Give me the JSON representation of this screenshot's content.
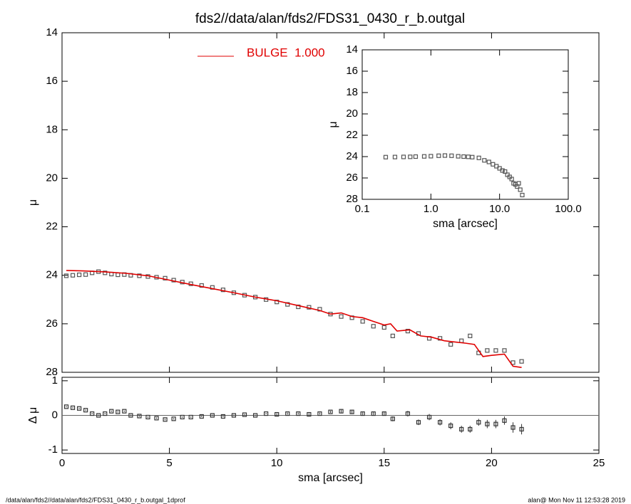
{
  "chart_data": [
    {
      "type": "scatter",
      "title": "fds2//data/alan/fds2/FDS31_0430_r_b.outgal",
      "ylabel": "μ",
      "xlim": [
        0,
        25
      ],
      "xticks": [
        0,
        5,
        10,
        15,
        20,
        25
      ],
      "xtick_labels": false,
      "ylim": [
        28,
        14
      ],
      "yticks": [
        14,
        16,
        18,
        20,
        22,
        24,
        26,
        28
      ],
      "legend": "top-left",
      "series": [
        {
          "color": "#555555",
          "marker": "square",
          "x": [
            0.2,
            0.5,
            0.8,
            1.1,
            1.4,
            1.7,
            2.0,
            2.3,
            2.6,
            2.9,
            3.2,
            3.6,
            4.0,
            4.4,
            4.8,
            5.2,
            5.6,
            6.0,
            6.5,
            7.0,
            7.5,
            8.0,
            8.5,
            9.0,
            9.5,
            10.0,
            10.5,
            11.0,
            11.5,
            12.0,
            12.5,
            13.0,
            13.5,
            14.0,
            14.5,
            15.0,
            15.4,
            16.1,
            16.6,
            17.1,
            17.6,
            18.1,
            18.6,
            19.0,
            19.4,
            19.8,
            20.2,
            20.6,
            21.0,
            21.4
          ],
          "values": [
            24.02,
            24.0,
            23.98,
            23.97,
            23.9,
            23.85,
            23.9,
            23.95,
            23.98,
            23.97,
            24.0,
            24.02,
            24.05,
            24.08,
            24.12,
            24.2,
            24.28,
            24.35,
            24.42,
            24.5,
            24.6,
            24.72,
            24.82,
            24.9,
            25.0,
            25.1,
            25.2,
            25.3,
            25.32,
            25.4,
            25.6,
            25.7,
            25.75,
            25.9,
            26.1,
            26.15,
            26.5,
            26.3,
            26.4,
            26.6,
            26.6,
            26.85,
            26.7,
            26.5,
            27.2,
            27.1,
            27.1,
            27.1,
            27.6,
            27.55
          ]
        },
        {
          "name": "BULGE  1.000",
          "color": "#e00000",
          "style": "line",
          "x": [
            0.2,
            1,
            2,
            3,
            4,
            5,
            6,
            7,
            8,
            9,
            10,
            11,
            12,
            12.5,
            13,
            13.5,
            14,
            14.5,
            15,
            15.3,
            15.6,
            16.2,
            16.7,
            17.2,
            17.8,
            18.3,
            18.8,
            19.2,
            19.6,
            20.0,
            20.6,
            21.0,
            21.4
          ],
          "values": [
            23.8,
            23.82,
            23.86,
            23.92,
            24.02,
            24.2,
            24.38,
            24.55,
            24.72,
            24.9,
            25.05,
            25.25,
            25.45,
            25.6,
            25.55,
            25.7,
            25.75,
            25.9,
            26.05,
            26.0,
            26.3,
            26.25,
            26.5,
            26.55,
            26.7,
            26.75,
            26.8,
            26.85,
            27.35,
            27.3,
            27.25,
            27.75,
            27.8
          ]
        }
      ]
    },
    {
      "type": "scatter",
      "xlabel": "sma [arcsec]",
      "ylabel": "μ",
      "xscale": "log",
      "xlim": [
        0.1,
        100
      ],
      "xticks": [
        {
          "value": 0.1,
          "label": "0.1"
        },
        {
          "value": 1,
          "label": "1.0"
        },
        {
          "value": 10,
          "label": "10.0"
        },
        {
          "value": 100,
          "label": "100.0"
        }
      ],
      "ylim": [
        28,
        14
      ],
      "yticks": [
        14,
        16,
        18,
        20,
        22,
        24,
        26,
        28
      ],
      "series": [
        {
          "color": "#555555",
          "marker": "square",
          "x": [
            0.22,
            0.3,
            0.4,
            0.5,
            0.6,
            0.8,
            1.0,
            1.3,
            1.6,
            2.0,
            2.5,
            3.0,
            3.5,
            4.0,
            5.0,
            6.0,
            7.0,
            8.0,
            9.0,
            10,
            11,
            12,
            13,
            14,
            15,
            16,
            17,
            18,
            19,
            20,
            21.4
          ],
          "values": [
            24.05,
            24.04,
            24.03,
            24.02,
            24.0,
            23.98,
            23.96,
            23.92,
            23.9,
            23.92,
            23.97,
            24.0,
            24.02,
            24.05,
            24.12,
            24.35,
            24.5,
            24.72,
            24.9,
            25.1,
            25.3,
            25.4,
            25.7,
            25.9,
            26.1,
            26.5,
            26.6,
            26.8,
            26.5,
            27.1,
            27.6
          ]
        }
      ]
    },
    {
      "type": "errorbar",
      "xlabel": "sma [arcsec]",
      "ylabel": "Δ μ",
      "xlim": [
        0,
        25
      ],
      "xticks": [
        0,
        5,
        10,
        15,
        20,
        25
      ],
      "ylim": [
        -1.1,
        1.1
      ],
      "yticks": [
        -1,
        0,
        1
      ],
      "reference_line": 0,
      "series": [
        {
          "color": "#333333",
          "marker": "square",
          "x": [
            0.2,
            0.5,
            0.8,
            1.1,
            1.4,
            1.7,
            2.0,
            2.3,
            2.6,
            2.9,
            3.2,
            3.6,
            4.0,
            4.4,
            4.8,
            5.2,
            5.6,
            6.0,
            6.5,
            7.0,
            7.5,
            8.0,
            8.5,
            9.0,
            9.5,
            10.0,
            10.5,
            11.0,
            11.5,
            12.0,
            12.5,
            13.0,
            13.5,
            14.0,
            14.5,
            15.0,
            15.4,
            16.1,
            16.6,
            17.1,
            17.6,
            18.1,
            18.6,
            19.0,
            19.4,
            19.8,
            20.2,
            20.6,
            21.0,
            21.4
          ],
          "values": [
            0.25,
            0.22,
            0.2,
            0.15,
            0.05,
            0.0,
            0.05,
            0.12,
            0.1,
            0.12,
            0.0,
            -0.02,
            -0.05,
            -0.08,
            -0.12,
            -0.1,
            -0.05,
            -0.05,
            -0.03,
            0.0,
            -0.03,
            0.0,
            0.02,
            0.0,
            0.05,
            0.03,
            0.05,
            0.05,
            0.03,
            0.05,
            0.1,
            0.12,
            0.1,
            0.05,
            0.05,
            0.05,
            -0.1,
            0.05,
            -0.2,
            -0.05,
            -0.2,
            -0.3,
            -0.4,
            -0.4,
            -0.2,
            -0.25,
            -0.25,
            -0.15,
            -0.35,
            -0.4
          ],
          "errors": [
            0.02,
            0.02,
            0.02,
            0.02,
            0.02,
            0.02,
            0.02,
            0.02,
            0.02,
            0.02,
            0.02,
            0.02,
            0.02,
            0.02,
            0.02,
            0.02,
            0.02,
            0.02,
            0.02,
            0.02,
            0.02,
            0.02,
            0.02,
            0.02,
            0.02,
            0.03,
            0.03,
            0.03,
            0.03,
            0.03,
            0.03,
            0.04,
            0.04,
            0.04,
            0.05,
            0.06,
            0.07,
            0.08,
            0.08,
            0.09,
            0.09,
            0.1,
            0.1,
            0.1,
            0.1,
            0.12,
            0.12,
            0.12,
            0.15,
            0.15
          ]
        }
      ]
    }
  ],
  "footer": {
    "left": "/data/alan/fds2//data/alan/fds2/FDS31_0430_r_b.outgal_1dprof",
    "right": "alan@  Mon Nov 11 12:53:28 2019"
  }
}
